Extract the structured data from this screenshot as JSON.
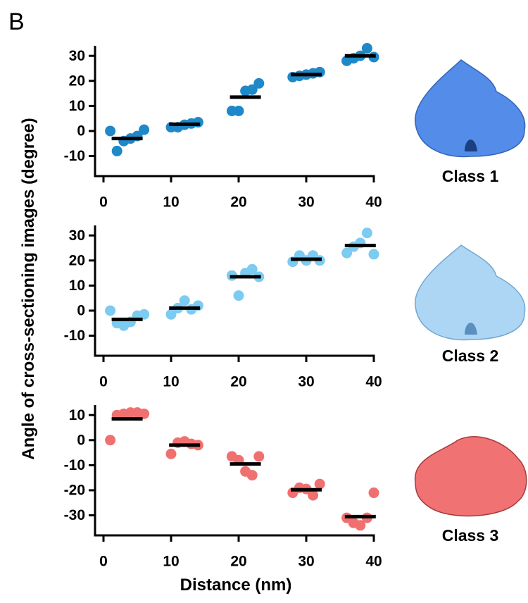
{
  "panel_label": "B",
  "ylabel": "Angle of cross-sectioning images (degree)",
  "xlabel": "Distance (nm)",
  "chart_data": [
    {
      "type": "scatter",
      "class_label": "Class 1",
      "color": "#1f88c8",
      "xlim": [
        -1.25,
        40
      ],
      "xticks": [
        0,
        10,
        20,
        30,
        40
      ],
      "ylim": [
        -18,
        34
      ],
      "yticks": [
        -10,
        0,
        10,
        20,
        30
      ],
      "points": {
        "x": [
          1,
          2,
          3,
          4,
          5,
          6,
          10,
          11,
          12,
          13,
          14,
          19,
          20,
          21,
          22,
          23,
          28,
          29,
          30,
          31,
          32,
          36,
          37,
          38,
          39,
          40
        ],
        "y": [
          0,
          -8,
          -4,
          -3,
          -2,
          0.5,
          1.5,
          1.5,
          2.5,
          3,
          3.5,
          8,
          8,
          16,
          16.5,
          19,
          21.5,
          22,
          22.5,
          23,
          23.5,
          28,
          29,
          30,
          33,
          29.5
        ]
      },
      "means": {
        "x": [
          3.5,
          12,
          21,
          30,
          38
        ],
        "y": [
          -3,
          2.7,
          13.5,
          22.5,
          30
        ]
      }
    },
    {
      "type": "scatter",
      "class_label": "Class 2",
      "color": "#7ccbf0",
      "xlim": [
        -1.25,
        40
      ],
      "xticks": [
        0,
        10,
        20,
        30,
        40
      ],
      "ylim": [
        -18,
        34
      ],
      "yticks": [
        -10,
        0,
        10,
        20,
        30
      ],
      "points": {
        "x": [
          1,
          2,
          3,
          4,
          5,
          6,
          10,
          11,
          12,
          13,
          14,
          19,
          20,
          21,
          22,
          23,
          28,
          29,
          30,
          31,
          32,
          36,
          37,
          38,
          39,
          40
        ],
        "y": [
          0,
          -5,
          -6,
          -4.5,
          -2,
          -1.5,
          -1.5,
          1,
          4,
          0.5,
          2,
          14,
          6,
          15,
          16.5,
          13.5,
          19.5,
          22,
          20,
          22,
          20,
          23,
          25.5,
          27,
          31,
          22.5
        ]
      },
      "means": {
        "x": [
          3.5,
          12,
          21,
          30,
          38
        ],
        "y": [
          -3.5,
          1,
          13.5,
          20.5,
          26
        ]
      }
    },
    {
      "type": "scatter",
      "class_label": "Class 3",
      "color": "#f07070",
      "xlim": [
        -1.25,
        40
      ],
      "xticks": [
        0,
        10,
        20,
        30,
        40
      ],
      "ylim": [
        -38,
        14
      ],
      "yticks": [
        -30,
        -20,
        -10,
        0,
        10
      ],
      "points": {
        "x": [
          1,
          2,
          3,
          4,
          5,
          6,
          10,
          11,
          12,
          13,
          14,
          19,
          20,
          21,
          22,
          23,
          28,
          29,
          30,
          31,
          32,
          36,
          37,
          38,
          39,
          40
        ],
        "y": [
          0,
          10,
          10.5,
          11,
          11,
          10.5,
          -5.5,
          -1,
          -0.5,
          -1.5,
          -2,
          -6.5,
          -8,
          -12.5,
          -14,
          -6.5,
          -21,
          -19,
          -19.5,
          -22,
          -17.5,
          -31,
          -33,
          -34,
          -31,
          -21
        ]
      },
      "means": {
        "x": [
          3.5,
          12,
          21,
          30,
          38
        ],
        "y": [
          8.5,
          -2,
          -9.5,
          -19.8,
          -30.5
        ]
      }
    }
  ]
}
